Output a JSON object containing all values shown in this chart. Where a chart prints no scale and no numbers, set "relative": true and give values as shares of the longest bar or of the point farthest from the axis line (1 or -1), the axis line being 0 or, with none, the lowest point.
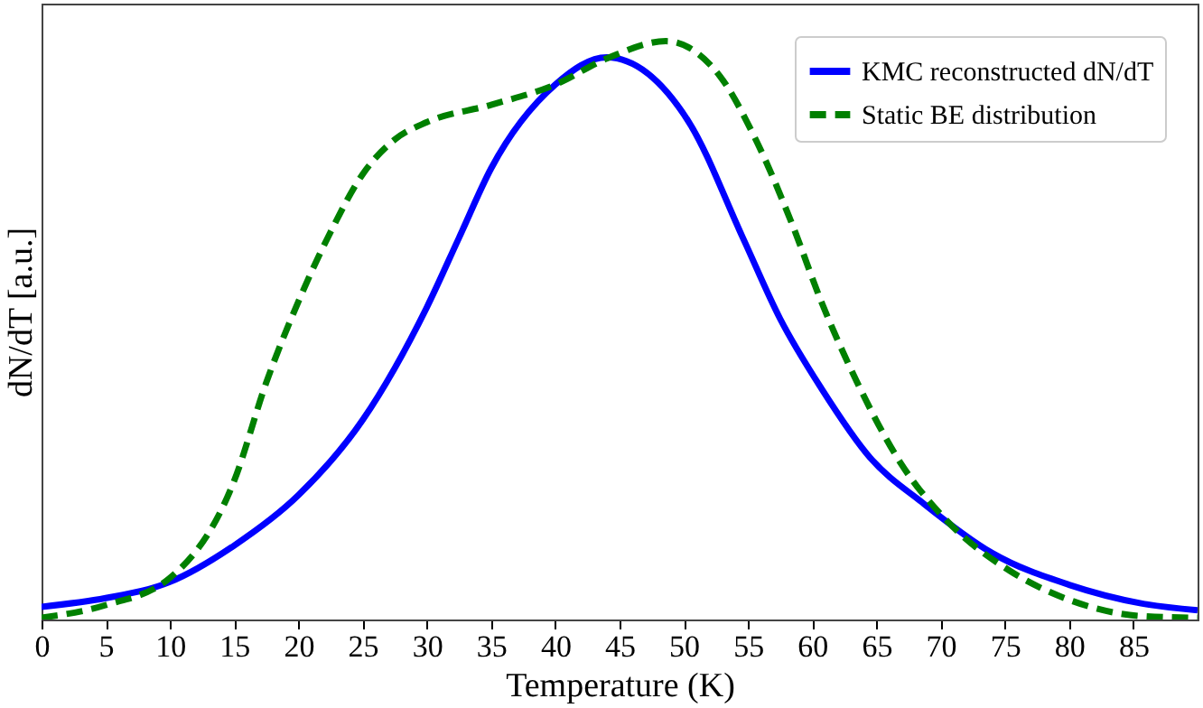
{
  "chart_data": {
    "type": "line",
    "relative": true,
    "xlabel": "Temperature (K)",
    "ylabel": "dN/dT [a.u.]",
    "xlim": [
      0,
      90
    ],
    "xticks": [
      0,
      5,
      10,
      15,
      20,
      25,
      30,
      35,
      40,
      45,
      50,
      55,
      60,
      65,
      70,
      75,
      80,
      85
    ],
    "legend": "top right",
    "grid": false,
    "series": [
      {
        "name": "KMC reconstructed dN/dT",
        "color": "#0000ff",
        "line_style": "solid",
        "x": [
          0,
          5,
          10,
          15,
          20,
          25,
          30,
          32.5,
          35,
          40,
          44,
          50.4,
          54.6,
          57.5,
          60.7,
          64.5,
          68.7,
          74,
          80,
          85.6,
          90
        ],
        "values": [
          0.022,
          0.037,
          0.065,
          0.128,
          0.215,
          0.345,
          0.54,
          0.66,
          0.78,
          0.925,
          0.972,
          0.86,
          0.66,
          0.52,
          0.4,
          0.28,
          0.2,
          0.115,
          0.06,
          0.028,
          0.016
        ]
      },
      {
        "name": "Static BE distribution",
        "color": "#008000",
        "line_style": "dashed",
        "x": [
          0,
          5,
          10,
          15,
          17.5,
          20,
          22.5,
          25,
          27.5,
          30,
          35,
          40,
          44,
          48.6,
          52.8,
          55.6,
          58.5,
          60.7,
          63.5,
          66.9,
          70.6,
          75.4,
          80,
          85.6,
          90
        ],
        "values": [
          0.003,
          0.025,
          0.072,
          0.24,
          0.41,
          0.55,
          0.67,
          0.77,
          0.83,
          0.86,
          0.89,
          0.925,
          0.97,
          1.0,
          0.94,
          0.83,
          0.68,
          0.55,
          0.41,
          0.27,
          0.168,
          0.084,
          0.034,
          0.006,
          0.003
        ]
      }
    ]
  }
}
